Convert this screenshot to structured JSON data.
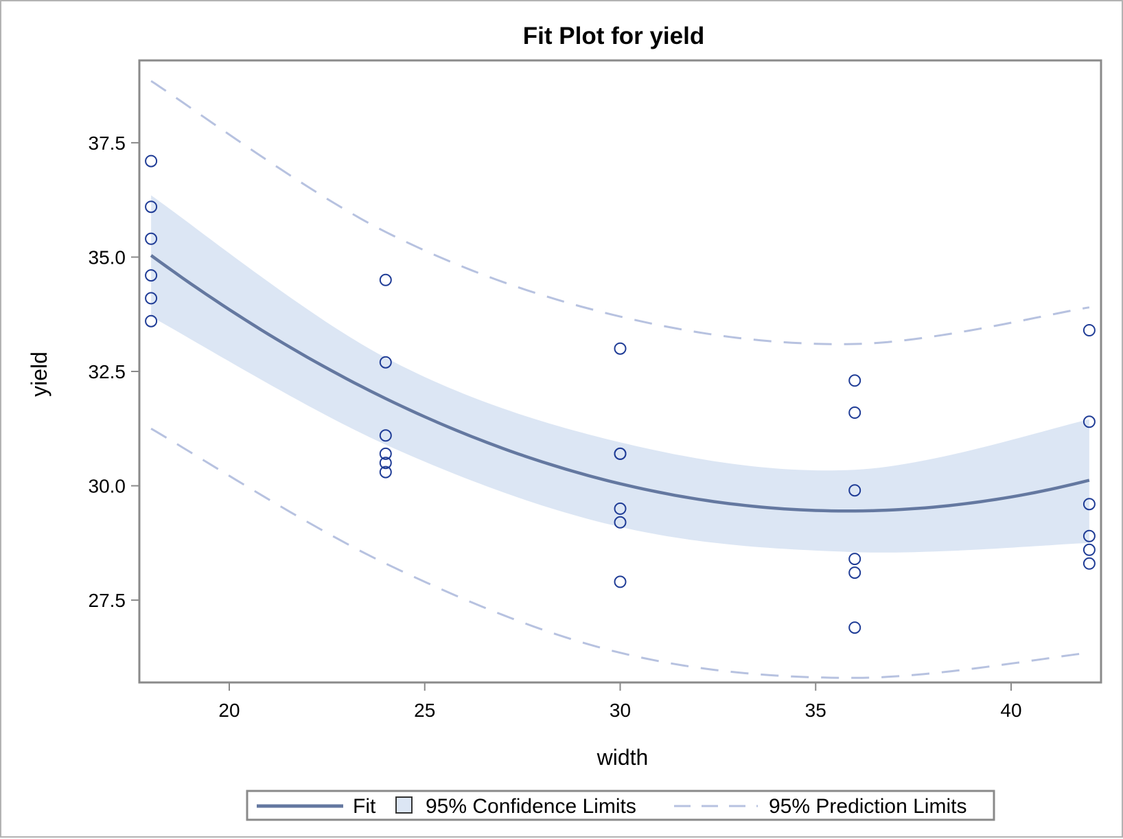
{
  "chart_data": {
    "type": "scatter",
    "title": "Fit Plot for yield",
    "xlabel": "width",
    "ylabel": "yield",
    "xlim": [
      17.7,
      42.3
    ],
    "ylim": [
      25.7,
      39.3
    ],
    "x_ticks": [
      20,
      25,
      30,
      35,
      40
    ],
    "x_tick_labels": [
      "20",
      "25",
      "30",
      "35",
      "40"
    ],
    "y_ticks": [
      27.5,
      30.0,
      32.5,
      35.0,
      37.5
    ],
    "y_tick_labels": [
      "27.5",
      "30.0",
      "32.5",
      "35.0",
      "37.5"
    ],
    "grid": false,
    "legend_placement": "bottom",
    "legend": {
      "fit_label": "Fit",
      "confidence_label": "95% Confidence Limits",
      "prediction_label": "95% Prediction Limits"
    },
    "colors": {
      "fit": "#6478a0",
      "confidence_band": "#dce6f4",
      "prediction": "#b7c2e0",
      "points": "#1f3c96"
    },
    "observations": {
      "x": [
        18,
        18,
        18,
        18,
        18,
        18,
        24,
        24,
        24,
        24,
        24,
        24,
        30,
        30,
        30,
        30,
        30,
        30,
        36,
        36,
        36,
        36,
        36,
        36,
        42,
        42,
        42,
        42,
        42,
        42
      ],
      "y": [
        37.1,
        36.1,
        35.4,
        34.6,
        34.1,
        33.6,
        34.5,
        32.7,
        31.1,
        30.7,
        30.5,
        30.3,
        33.0,
        30.7,
        30.7,
        29.5,
        29.2,
        27.9,
        32.3,
        31.6,
        29.9,
        28.4,
        28.1,
        26.9,
        33.4,
        31.4,
        29.6,
        28.9,
        28.6,
        28.3
      ]
    },
    "fit": {
      "x": [
        18,
        24,
        30,
        36,
        42
      ],
      "y": [
        35.04,
        31.9,
        30.05,
        29.45,
        30.12
      ]
    },
    "confidence_limits": {
      "x": [
        18,
        24,
        30,
        36,
        42
      ],
      "lower": [
        33.7,
        30.9,
        29.1,
        28.55,
        28.75
      ],
      "upper": [
        36.35,
        32.8,
        30.95,
        30.35,
        31.45
      ]
    },
    "prediction_limits": {
      "x": [
        18,
        24,
        30,
        36,
        42
      ],
      "lower": [
        31.25,
        28.3,
        26.35,
        25.8,
        26.35
      ],
      "upper": [
        38.85,
        35.55,
        33.7,
        33.1,
        33.9
      ]
    }
  }
}
